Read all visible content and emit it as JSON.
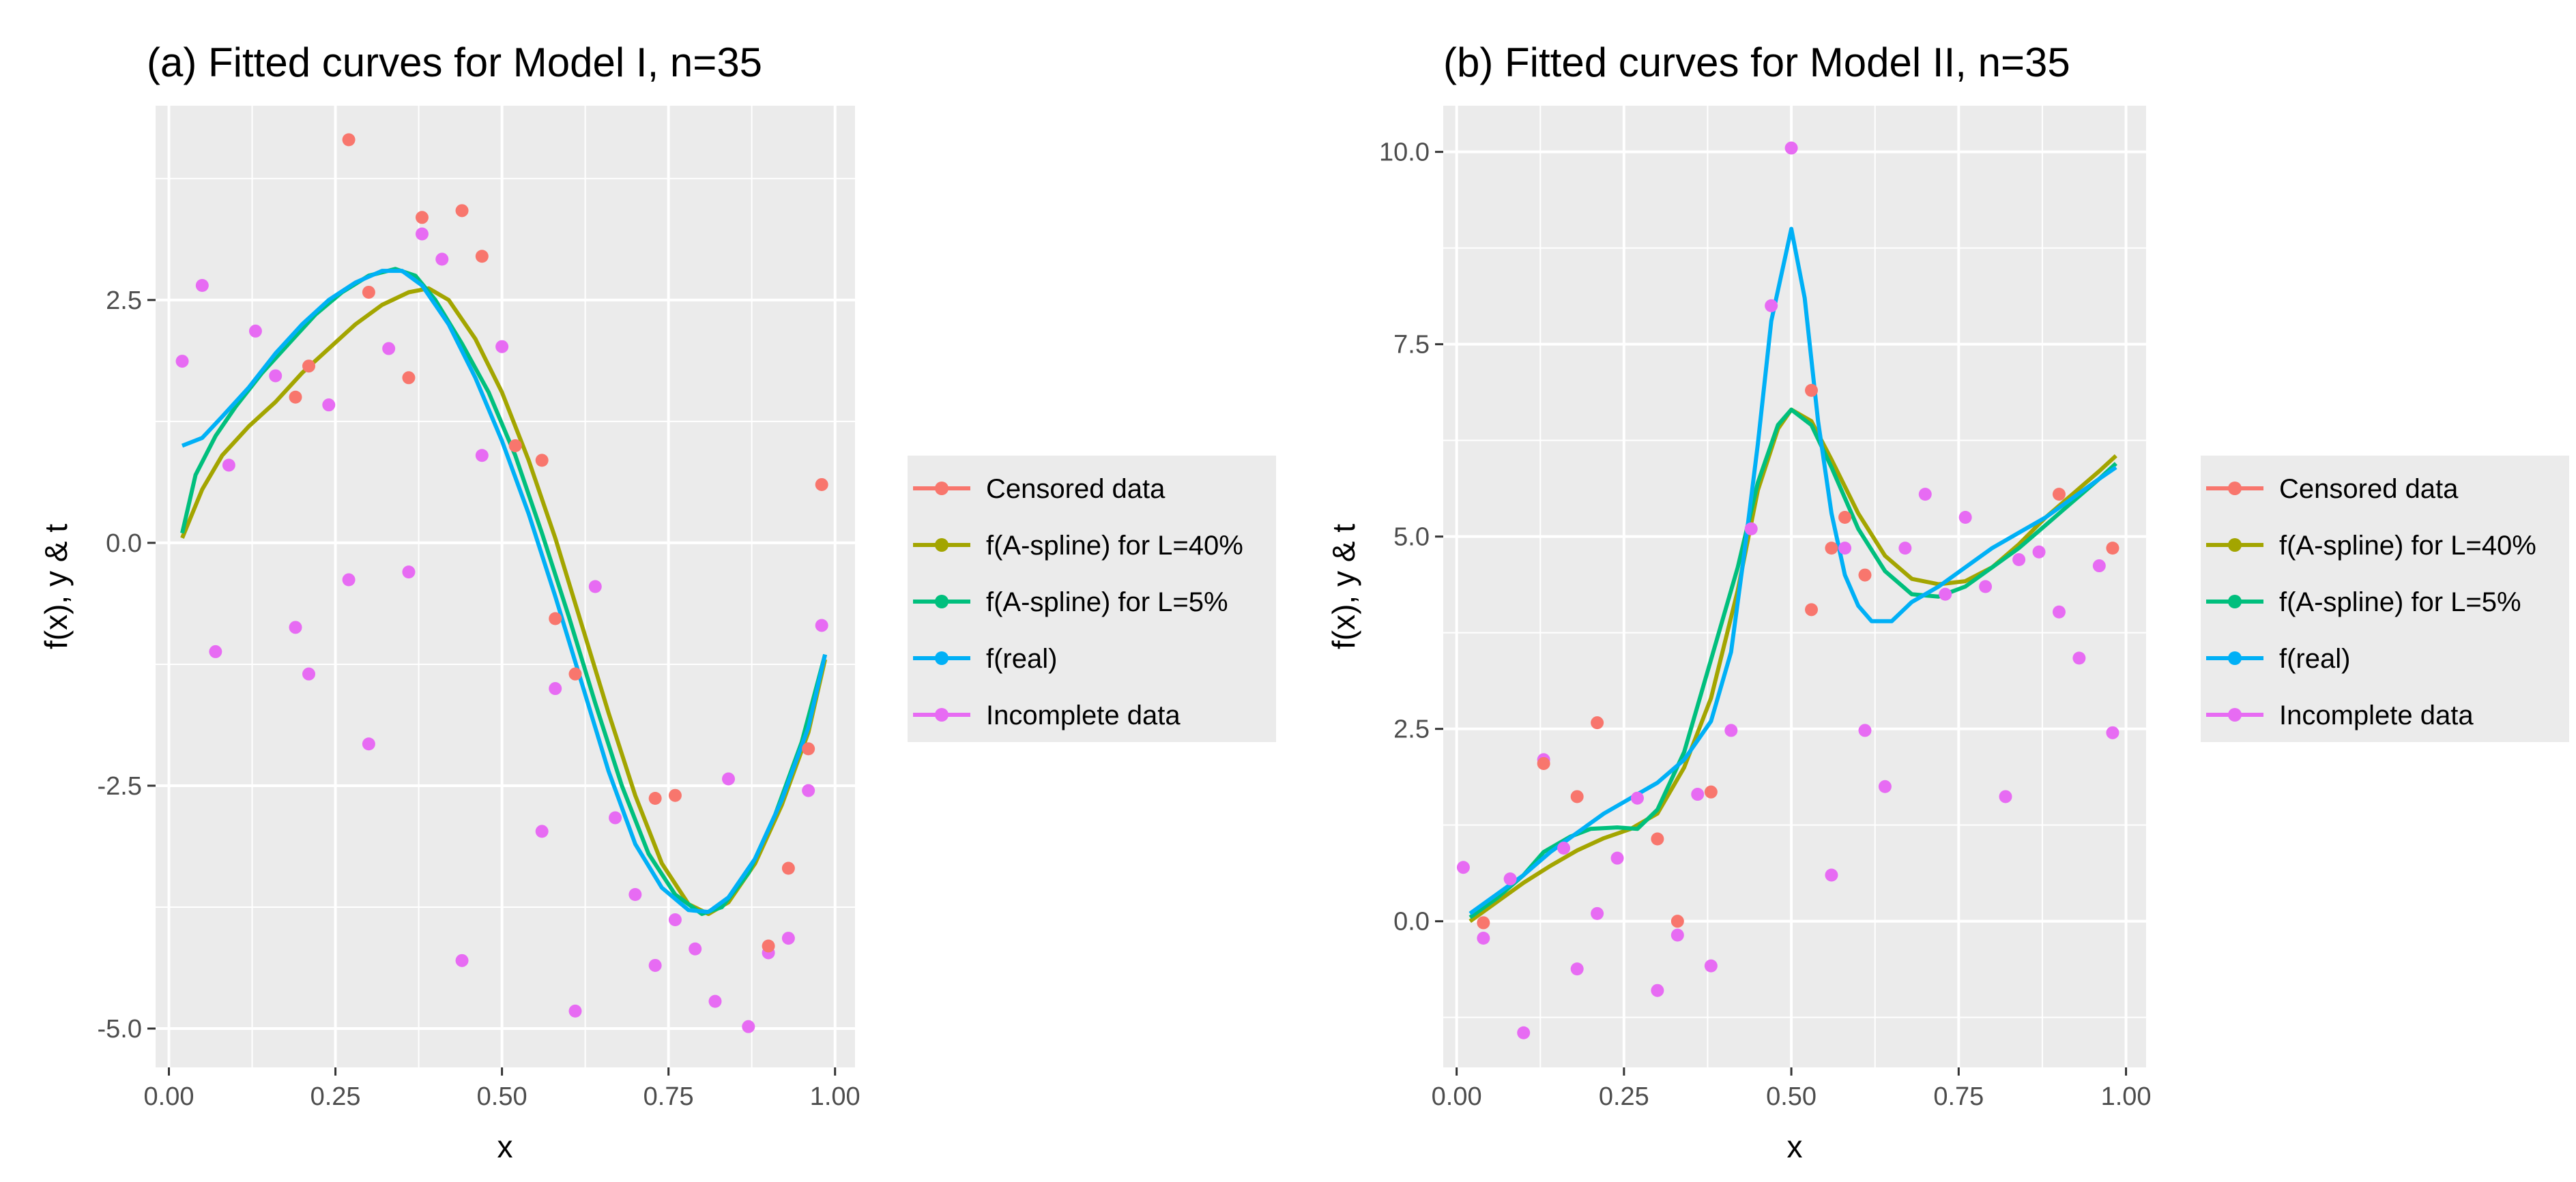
{
  "colors": {
    "censored": "#F8766D",
    "aspline40": "#A3A500",
    "aspline5": "#00BF7D",
    "real": "#00B0F6",
    "incomplete": "#E76BF3",
    "panel_bg": "#EBEBEB",
    "grid": "#FFFFFF"
  },
  "chart_data": [
    {
      "type": "scatter+line",
      "title": "(a) Fitted curves for Model I, n=35",
      "xlabel": "x",
      "ylabel": "f(x), y & t",
      "xlim": [
        -0.02,
        1.03
      ],
      "ylim": [
        -5.4,
        4.5
      ],
      "xticks": [
        0,
        0.25,
        0.5,
        0.75,
        1
      ],
      "xtick_labels": [
        "0.00",
        "0.25",
        "0.50",
        "0.75",
        "1.00"
      ],
      "yticks": [
        -5,
        -2.5,
        0,
        2.5
      ],
      "ytick_labels": [
        "-5.0",
        "-2.5",
        "0.0",
        "2.5"
      ],
      "legend": [
        "Censored data",
        "f(A-spline) for L=40%",
        "f(A-spline) for L=5%",
        "f(real)",
        "Incomplete data"
      ],
      "legend_position": "right",
      "lines": {
        "aspline40": [
          [
            0.02,
            0.05
          ],
          [
            0.05,
            0.55
          ],
          [
            0.08,
            0.9
          ],
          [
            0.12,
            1.2
          ],
          [
            0.16,
            1.45
          ],
          [
            0.2,
            1.75
          ],
          [
            0.24,
            2.0
          ],
          [
            0.28,
            2.25
          ],
          [
            0.32,
            2.45
          ],
          [
            0.36,
            2.58
          ],
          [
            0.39,
            2.62
          ],
          [
            0.42,
            2.5
          ],
          [
            0.46,
            2.1
          ],
          [
            0.5,
            1.55
          ],
          [
            0.54,
            0.85
          ],
          [
            0.58,
            0.05
          ],
          [
            0.62,
            -0.85
          ],
          [
            0.66,
            -1.75
          ],
          [
            0.7,
            -2.6
          ],
          [
            0.74,
            -3.3
          ],
          [
            0.78,
            -3.72
          ],
          [
            0.81,
            -3.82
          ],
          [
            0.84,
            -3.7
          ],
          [
            0.88,
            -3.3
          ],
          [
            0.92,
            -2.7
          ],
          [
            0.96,
            -1.95
          ],
          [
            0.985,
            -1.2
          ]
        ],
        "aspline5": [
          [
            0.02,
            0.1
          ],
          [
            0.04,
            0.7
          ],
          [
            0.07,
            1.1
          ],
          [
            0.1,
            1.4
          ],
          [
            0.14,
            1.75
          ],
          [
            0.18,
            2.05
          ],
          [
            0.22,
            2.35
          ],
          [
            0.26,
            2.58
          ],
          [
            0.3,
            2.75
          ],
          [
            0.34,
            2.82
          ],
          [
            0.37,
            2.75
          ],
          [
            0.4,
            2.5
          ],
          [
            0.44,
            2.05
          ],
          [
            0.48,
            1.55
          ],
          [
            0.52,
            0.9
          ],
          [
            0.56,
            0.1
          ],
          [
            0.6,
            -0.75
          ],
          [
            0.64,
            -1.65
          ],
          [
            0.68,
            -2.5
          ],
          [
            0.72,
            -3.2
          ],
          [
            0.76,
            -3.62
          ],
          [
            0.8,
            -3.82
          ],
          [
            0.83,
            -3.75
          ],
          [
            0.87,
            -3.4
          ],
          [
            0.91,
            -2.8
          ],
          [
            0.95,
            -2.05
          ],
          [
            0.985,
            -1.15
          ]
        ],
        "real": [
          [
            0.02,
            1.0
          ],
          [
            0.05,
            1.08
          ],
          [
            0.08,
            1.3
          ],
          [
            0.12,
            1.6
          ],
          [
            0.16,
            1.95
          ],
          [
            0.2,
            2.25
          ],
          [
            0.24,
            2.5
          ],
          [
            0.28,
            2.68
          ],
          [
            0.32,
            2.8
          ],
          [
            0.35,
            2.8
          ],
          [
            0.38,
            2.65
          ],
          [
            0.42,
            2.25
          ],
          [
            0.46,
            1.7
          ],
          [
            0.5,
            1.05
          ],
          [
            0.54,
            0.3
          ],
          [
            0.58,
            -0.55
          ],
          [
            0.62,
            -1.45
          ],
          [
            0.66,
            -2.35
          ],
          [
            0.7,
            -3.1
          ],
          [
            0.74,
            -3.55
          ],
          [
            0.78,
            -3.78
          ],
          [
            0.81,
            -3.8
          ],
          [
            0.84,
            -3.65
          ],
          [
            0.88,
            -3.25
          ],
          [
            0.92,
            -2.65
          ],
          [
            0.96,
            -1.9
          ],
          [
            0.985,
            -1.15
          ]
        ]
      },
      "points": {
        "censored": [
          [
            0.27,
            4.15
          ],
          [
            0.38,
            3.35
          ],
          [
            0.44,
            3.42
          ],
          [
            0.47,
            2.95
          ],
          [
            0.3,
            2.58
          ],
          [
            0.36,
            1.7
          ],
          [
            0.21,
            1.82
          ],
          [
            0.19,
            1.5
          ],
          [
            0.52,
            1.0
          ],
          [
            0.56,
            0.85
          ],
          [
            0.98,
            0.6
          ],
          [
            0.58,
            -0.78
          ],
          [
            0.61,
            -1.35
          ],
          [
            0.73,
            -2.63
          ],
          [
            0.76,
            -2.6
          ],
          [
            0.9,
            -4.15
          ],
          [
            0.93,
            -3.35
          ],
          [
            0.96,
            -2.12
          ]
        ],
        "incomplete": [
          [
            0.02,
            1.87
          ],
          [
            0.05,
            2.65
          ],
          [
            0.13,
            2.18
          ],
          [
            0.16,
            1.72
          ],
          [
            0.24,
            1.42
          ],
          [
            0.09,
            0.8
          ],
          [
            0.38,
            3.18
          ],
          [
            0.41,
            2.92
          ],
          [
            0.33,
            2.0
          ],
          [
            0.5,
            2.02
          ],
          [
            0.47,
            0.9
          ],
          [
            0.27,
            -0.38
          ],
          [
            0.36,
            -0.3
          ],
          [
            0.64,
            -0.45
          ],
          [
            0.07,
            -1.12
          ],
          [
            0.19,
            -0.87
          ],
          [
            0.21,
            -1.35
          ],
          [
            0.3,
            -2.07
          ],
          [
            0.58,
            -1.5
          ],
          [
            0.56,
            -2.97
          ],
          [
            0.67,
            -2.83
          ],
          [
            0.7,
            -3.62
          ],
          [
            0.73,
            -4.35
          ],
          [
            0.76,
            -3.88
          ],
          [
            0.79,
            -4.18
          ],
          [
            0.82,
            -4.72
          ],
          [
            0.87,
            -4.98
          ],
          [
            0.9,
            -4.22
          ],
          [
            0.93,
            -4.07
          ],
          [
            0.96,
            -2.55
          ],
          [
            0.98,
            -0.85
          ],
          [
            0.84,
            -2.43
          ],
          [
            0.44,
            -4.3
          ],
          [
            0.61,
            -4.82
          ]
        ]
      }
    },
    {
      "type": "scatter+line",
      "title": "(b) Fitted curves for Model II, n=35",
      "xlabel": "x",
      "ylabel": "f(x), y & t",
      "xlim": [
        -0.02,
        1.03
      ],
      "ylim": [
        -1.9,
        10.6
      ],
      "xticks": [
        0,
        0.25,
        0.5,
        0.75,
        1
      ],
      "xtick_labels": [
        "0.00",
        "0.25",
        "0.50",
        "0.75",
        "1.00"
      ],
      "yticks": [
        0,
        2.5,
        5,
        7.5,
        10
      ],
      "ytick_labels": [
        "0.0",
        "2.5",
        "5.0",
        "7.5",
        "10.0"
      ],
      "legend": [
        "Censored data",
        "f(A-spline) for L=40%",
        "f(A-spline) for L=5%",
        "f(real)",
        "Incomplete data"
      ],
      "legend_position": "right",
      "lines": {
        "aspline40": [
          [
            0.02,
            0.0
          ],
          [
            0.06,
            0.25
          ],
          [
            0.1,
            0.5
          ],
          [
            0.14,
            0.72
          ],
          [
            0.18,
            0.92
          ],
          [
            0.22,
            1.08
          ],
          [
            0.26,
            1.2
          ],
          [
            0.3,
            1.4
          ],
          [
            0.34,
            2.0
          ],
          [
            0.38,
            2.9
          ],
          [
            0.42,
            4.3
          ],
          [
            0.45,
            5.6
          ],
          [
            0.48,
            6.4
          ],
          [
            0.5,
            6.65
          ],
          [
            0.53,
            6.5
          ],
          [
            0.56,
            6.0
          ],
          [
            0.6,
            5.3
          ],
          [
            0.64,
            4.75
          ],
          [
            0.68,
            4.45
          ],
          [
            0.72,
            4.38
          ],
          [
            0.76,
            4.42
          ],
          [
            0.8,
            4.6
          ],
          [
            0.84,
            4.9
          ],
          [
            0.88,
            5.25
          ],
          [
            0.92,
            5.55
          ],
          [
            0.96,
            5.85
          ],
          [
            0.985,
            6.05
          ]
        ],
        "aspline5": [
          [
            0.02,
            0.05
          ],
          [
            0.06,
            0.3
          ],
          [
            0.1,
            0.6
          ],
          [
            0.13,
            0.9
          ],
          [
            0.17,
            1.1
          ],
          [
            0.2,
            1.2
          ],
          [
            0.24,
            1.22
          ],
          [
            0.27,
            1.2
          ],
          [
            0.3,
            1.45
          ],
          [
            0.34,
            2.2
          ],
          [
            0.38,
            3.4
          ],
          [
            0.42,
            4.6
          ],
          [
            0.45,
            5.7
          ],
          [
            0.48,
            6.45
          ],
          [
            0.5,
            6.65
          ],
          [
            0.53,
            6.45
          ],
          [
            0.56,
            5.9
          ],
          [
            0.6,
            5.1
          ],
          [
            0.64,
            4.55
          ],
          [
            0.68,
            4.25
          ],
          [
            0.72,
            4.22
          ],
          [
            0.76,
            4.35
          ],
          [
            0.8,
            4.6
          ],
          [
            0.84,
            4.85
          ],
          [
            0.88,
            5.15
          ],
          [
            0.92,
            5.45
          ],
          [
            0.96,
            5.75
          ],
          [
            0.985,
            5.95
          ]
        ],
        "real": [
          [
            0.02,
            0.1
          ],
          [
            0.06,
            0.35
          ],
          [
            0.1,
            0.6
          ],
          [
            0.14,
            0.9
          ],
          [
            0.18,
            1.15
          ],
          [
            0.22,
            1.4
          ],
          [
            0.26,
            1.6
          ],
          [
            0.3,
            1.8
          ],
          [
            0.34,
            2.1
          ],
          [
            0.38,
            2.6
          ],
          [
            0.41,
            3.5
          ],
          [
            0.43,
            4.8
          ],
          [
            0.45,
            6.2
          ],
          [
            0.47,
            7.8
          ],
          [
            0.49,
            8.6
          ],
          [
            0.5,
            9.0
          ],
          [
            0.52,
            8.1
          ],
          [
            0.54,
            6.5
          ],
          [
            0.56,
            5.3
          ],
          [
            0.58,
            4.5
          ],
          [
            0.6,
            4.1
          ],
          [
            0.62,
            3.9
          ],
          [
            0.65,
            3.9
          ],
          [
            0.68,
            4.15
          ],
          [
            0.72,
            4.35
          ],
          [
            0.76,
            4.6
          ],
          [
            0.8,
            4.85
          ],
          [
            0.84,
            5.05
          ],
          [
            0.88,
            5.25
          ],
          [
            0.92,
            5.5
          ],
          [
            0.96,
            5.75
          ],
          [
            0.985,
            5.9
          ]
        ]
      },
      "points": {
        "censored": [
          [
            0.04,
            -0.02
          ],
          [
            0.13,
            2.05
          ],
          [
            0.18,
            1.62
          ],
          [
            0.21,
            2.58
          ],
          [
            0.3,
            1.07
          ],
          [
            0.33,
            0.0
          ],
          [
            0.38,
            1.68
          ],
          [
            0.53,
            6.9
          ],
          [
            0.53,
            4.05
          ],
          [
            0.56,
            4.85
          ],
          [
            0.58,
            5.25
          ],
          [
            0.61,
            4.5
          ],
          [
            0.9,
            5.55
          ],
          [
            0.98,
            4.85
          ]
        ],
        "incomplete": [
          [
            0.01,
            0.7
          ],
          [
            0.04,
            -0.22
          ],
          [
            0.08,
            0.55
          ],
          [
            0.1,
            -1.45
          ],
          [
            0.13,
            2.1
          ],
          [
            0.16,
            0.95
          ],
          [
            0.18,
            -0.62
          ],
          [
            0.21,
            0.1
          ],
          [
            0.24,
            0.82
          ],
          [
            0.27,
            1.6
          ],
          [
            0.3,
            -0.9
          ],
          [
            0.33,
            -0.18
          ],
          [
            0.36,
            1.65
          ],
          [
            0.38,
            -0.58
          ],
          [
            0.41,
            2.48
          ],
          [
            0.44,
            5.1
          ],
          [
            0.47,
            8.0
          ],
          [
            0.5,
            10.05
          ],
          [
            0.56,
            0.6
          ],
          [
            0.58,
            4.85
          ],
          [
            0.61,
            2.48
          ],
          [
            0.64,
            1.75
          ],
          [
            0.67,
            4.85
          ],
          [
            0.7,
            5.55
          ],
          [
            0.73,
            4.25
          ],
          [
            0.76,
            5.25
          ],
          [
            0.79,
            4.35
          ],
          [
            0.82,
            1.62
          ],
          [
            0.84,
            4.7
          ],
          [
            0.87,
            4.8
          ],
          [
            0.9,
            4.02
          ],
          [
            0.93,
            3.42
          ],
          [
            0.96,
            4.62
          ],
          [
            0.98,
            2.45
          ]
        ]
      }
    }
  ]
}
